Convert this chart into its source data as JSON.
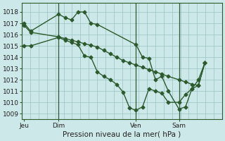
{
  "bg_color": "#cde8e8",
  "grid_color": "#a0c8c8",
  "line_color": "#2d5a2d",
  "ylabel_ticks": [
    1009,
    1010,
    1011,
    1012,
    1013,
    1014,
    1015,
    1016,
    1017,
    1018
  ],
  "ylim": [
    1008.5,
    1018.8
  ],
  "xlabel": "Pression niveau de la mer( hPa )",
  "xtick_labels": [
    "Jeu",
    "Dim",
    "Ven",
    "Sam"
  ],
  "xtick_positions": [
    0,
    8,
    26,
    36
  ],
  "xlim": [
    -0.5,
    46
  ],
  "series": [
    {
      "x": [
        0,
        1.5,
        8,
        9.5,
        11,
        12.5,
        14,
        15.5,
        17,
        26,
        27.5,
        29,
        30.5,
        32,
        33.5,
        36,
        37.5,
        39,
        40.5,
        42
      ],
      "y": [
        1017,
        1016.3,
        1017.8,
        1017.5,
        1017.3,
        1018.0,
        1018.0,
        1017.0,
        1016.9,
        1015.1,
        1014.0,
        1013.9,
        1012.0,
        1012.3,
        1011.0,
        1009.4,
        1009.6,
        1011.2,
        1012.0,
        1013.5
      ]
    },
    {
      "x": [
        0,
        1.5,
        8,
        9.5,
        11,
        12.5,
        14,
        15.5,
        17,
        18.5,
        20,
        21.5,
        23,
        24.5,
        26,
        27.5,
        29,
        30.5,
        32,
        33.5,
        36,
        37.5,
        39,
        40.5,
        42
      ],
      "y": [
        1016.8,
        1016.2,
        1015.8,
        1015.65,
        1015.5,
        1015.35,
        1015.2,
        1015.05,
        1014.9,
        1014.6,
        1014.3,
        1014.0,
        1013.7,
        1013.5,
        1013.3,
        1013.1,
        1012.9,
        1012.7,
        1012.5,
        1012.3,
        1012.0,
        1011.8,
        1011.6,
        1011.5,
        1013.5
      ]
    },
    {
      "x": [
        0,
        1.5,
        8,
        9.5,
        11,
        12.5,
        14,
        15.5,
        17,
        18.5,
        20,
        21.5,
        23,
        24.5,
        26,
        27.5,
        29,
        30.5,
        32,
        33.5,
        36,
        37.5,
        39,
        40.5,
        42
      ],
      "y": [
        1015.0,
        1015.0,
        1015.75,
        1015.5,
        1015.3,
        1015.1,
        1014.1,
        1014.0,
        1012.7,
        1012.3,
        1012.0,
        1011.6,
        1010.9,
        1009.5,
        1009.3,
        1009.6,
        1011.2,
        1011.0,
        1010.8,
        1010.0,
        1010.0,
        1010.7,
        1011.2,
        1011.5,
        1013.5
      ]
    }
  ],
  "vline_positions": [
    8,
    26,
    36
  ],
  "marker": "D",
  "marker_size": 2.5,
  "line_width": 1.0
}
